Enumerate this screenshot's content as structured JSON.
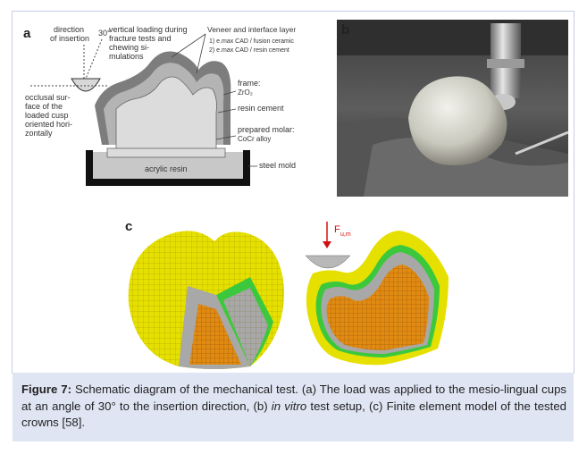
{
  "panel_a": {
    "letter": "a",
    "direction_label_1": "direction",
    "direction_label_2": "of insertion",
    "angle_label": "30°",
    "loading_label_1": "vertical loading during",
    "loading_label_2": "fracture tests and",
    "loading_label_3": "chewing si-",
    "loading_label_4": "mulations",
    "veneer_title": "Veneer and interface layer",
    "veneer_opt_1": "1)   e.max CAD / fusion ceramic",
    "veneer_opt_2": "2)   e.max CAD / resin cement",
    "occlusal_1": "occlusal sur-",
    "occlusal_2": "face of the",
    "occlusal_3": "loaded cusp",
    "occlusal_4": "oriented hori-",
    "occlusal_5": "zontally",
    "frame_label_1": "frame:",
    "frame_label_2": "ZrO₂",
    "resin_cement": "resin cement",
    "molar_1": "prepared molar:",
    "molar_2": "CoCr alloy",
    "acrylic": "acrylic resin",
    "steel_mold": "steel mold"
  },
  "panel_b": {
    "letter": "b"
  },
  "panel_c": {
    "letter": "c",
    "force_symbol": "F",
    "force_subscript": "u,m"
  },
  "caption": {
    "figure_label": "Figure 7:",
    "text_1": " Schematic diagram of the mechanical test. (a) The load was applied to the mesio-lingual cups at an angle of 30° to the insertion direction, (b) ",
    "italic": "in vitro",
    "text_2": " test setup, (c) Finite element model of the tested crowns [58]."
  },
  "colors": {
    "caption_bg": "#dfe5f3",
    "frame_border": "#c7cfe6",
    "fem_yellow": "#e6e000",
    "fem_orange": "#e08a12",
    "fem_green": "#3cc83c",
    "fem_grey": "#a8a8a8"
  }
}
